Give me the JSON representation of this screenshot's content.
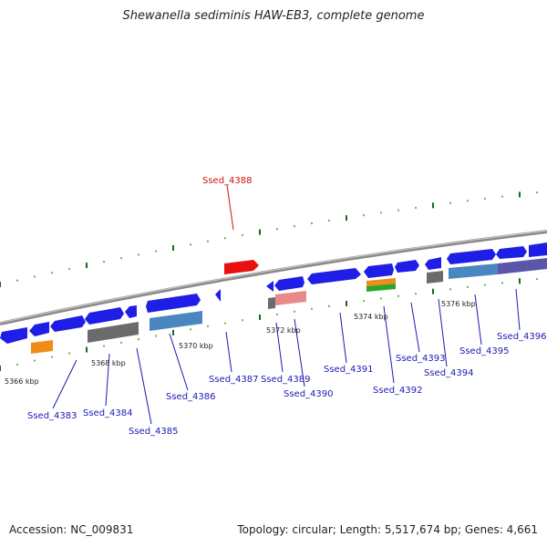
{
  "title": "Shewanella sediminis HAW-EB3, complete genome",
  "accession_text": "Accession: NC_009831",
  "summary_text": "Topology: circular; Length: 5,517,674 bp; Genes: 4,661",
  "colors": {
    "forward_gene": "#1e1ee6",
    "reverse_gene": "#1e1ee6",
    "highlight_gene": "#e81010",
    "feature_gray": "#6b6b6b",
    "feature_steelblue": "#4a86c0",
    "feature_orange": "#f08c18",
    "feature_green": "#2aa62a",
    "feature_pink": "#e88a8a",
    "feature_purple": "#5a56a8",
    "backbone": "#8a8a8a",
    "tick_dark": "#1a6a1a",
    "tick_light": "#2fa02f"
  },
  "scale_labels": [
    "5366 kbp",
    "5368 kbp",
    "5370 kbp",
    "5372 kbp",
    "5374 kbp",
    "5376 kbp"
  ],
  "genes": [
    {
      "id": "Ssed_4383",
      "highlight": false
    },
    {
      "id": "Ssed_4384",
      "highlight": false
    },
    {
      "id": "Ssed_4385",
      "highlight": false
    },
    {
      "id": "Ssed_4386",
      "highlight": false
    },
    {
      "id": "Ssed_4387",
      "highlight": false
    },
    {
      "id": "Ssed_4388",
      "highlight": true
    },
    {
      "id": "Ssed_4389",
      "highlight": false
    },
    {
      "id": "Ssed_4390",
      "highlight": false
    },
    {
      "id": "Ssed_4391",
      "highlight": false
    },
    {
      "id": "Ssed_4392",
      "highlight": false
    },
    {
      "id": "Ssed_4393",
      "highlight": false
    },
    {
      "id": "Ssed_4394",
      "highlight": false
    },
    {
      "id": "Ssed_4395",
      "highlight": false
    },
    {
      "id": "Ssed_4396",
      "highlight": false
    }
  ]
}
